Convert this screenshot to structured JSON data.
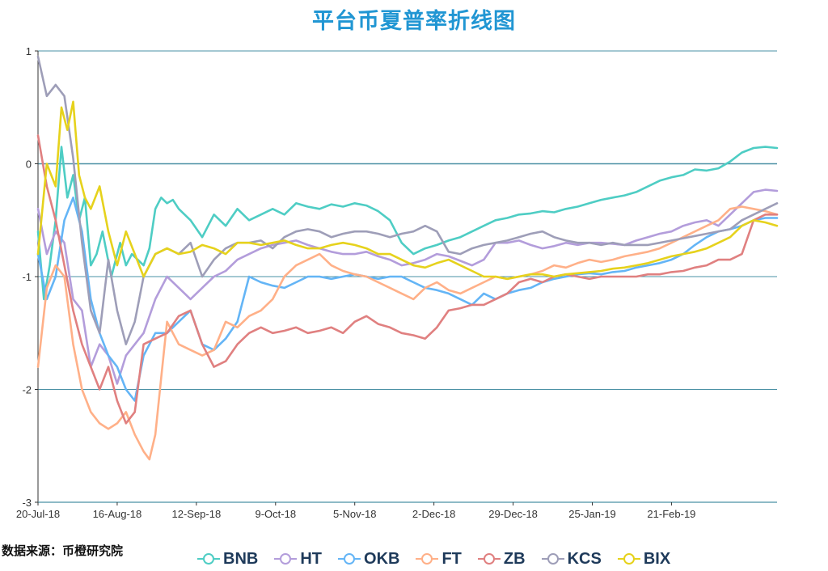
{
  "source_note": "数据来源：币橙研究院",
  "chart_data": {
    "type": "line",
    "title": "平台币夏普率折线图",
    "xlabel": "",
    "ylabel": "",
    "ylim": [
      -3,
      1
    ],
    "y_ticks": [
      "1",
      "0",
      "-1",
      "-2",
      "-3"
    ],
    "x_tick_labels": [
      "20-Jul-18",
      "16-Aug-18",
      "12-Sep-18",
      "9-Oct-18",
      "5-Nov-18",
      "2-Dec-18",
      "29-Dec-18",
      "25-Jan-19",
      "21-Feb-19"
    ],
    "x_range_days": [
      0,
      252
    ],
    "grid": "horizontal",
    "legend_position": "bottom",
    "series": [
      {
        "name": "BNB",
        "color": "#4ecdc4",
        "x": [
          0,
          2,
          4,
          6,
          8,
          10,
          12,
          14,
          16,
          18,
          20,
          22,
          25,
          28,
          30,
          32,
          34,
          36,
          38,
          40,
          42,
          44,
          46,
          48,
          52,
          56,
          60,
          64,
          68,
          72,
          76,
          80,
          84,
          88,
          92,
          96,
          100,
          104,
          108,
          112,
          116,
          120,
          124,
          128,
          132,
          136,
          140,
          144,
          148,
          152,
          156,
          160,
          164,
          168,
          172,
          176,
          180,
          184,
          188,
          192,
          196,
          200,
          204,
          208,
          212,
          216,
          220,
          224,
          228,
          232,
          236,
          240,
          244,
          248,
          252
        ],
        "y": [
          -0.6,
          -1.2,
          -0.9,
          -0.5,
          0.15,
          -0.3,
          -0.1,
          -0.5,
          -0.3,
          -0.9,
          -0.8,
          -0.6,
          -1.0,
          -0.7,
          -0.9,
          -0.8,
          -0.85,
          -0.9,
          -0.75,
          -0.4,
          -0.3,
          -0.35,
          -0.32,
          -0.4,
          -0.5,
          -0.65,
          -0.45,
          -0.55,
          -0.4,
          -0.5,
          -0.45,
          -0.4,
          -0.45,
          -0.35,
          -0.38,
          -0.4,
          -0.36,
          -0.38,
          -0.35,
          -0.37,
          -0.42,
          -0.5,
          -0.7,
          -0.8,
          -0.75,
          -0.72,
          -0.68,
          -0.65,
          -0.6,
          -0.55,
          -0.5,
          -0.48,
          -0.45,
          -0.44,
          -0.42,
          -0.43,
          -0.4,
          -0.38,
          -0.35,
          -0.32,
          -0.3,
          -0.28,
          -0.25,
          -0.2,
          -0.15,
          -0.12,
          -0.1,
          -0.05,
          -0.06,
          -0.04,
          0.02,
          0.1,
          0.14,
          0.15,
          0.14
        ]
      },
      {
        "name": "HT",
        "color": "#b39ddb",
        "x": [
          0,
          3,
          6,
          9,
          12,
          15,
          18,
          21,
          24,
          27,
          30,
          33,
          36,
          40,
          44,
          48,
          52,
          56,
          60,
          64,
          68,
          72,
          76,
          80,
          84,
          88,
          92,
          96,
          100,
          104,
          108,
          112,
          116,
          120,
          124,
          128,
          132,
          136,
          140,
          144,
          148,
          152,
          156,
          160,
          164,
          168,
          172,
          176,
          180,
          184,
          188,
          192,
          196,
          200,
          204,
          208,
          212,
          216,
          220,
          224,
          228,
          232,
          236,
          240,
          244,
          248,
          252
        ],
        "y": [
          -0.4,
          -0.8,
          -0.6,
          -0.7,
          -1.2,
          -1.3,
          -1.8,
          -1.6,
          -1.7,
          -1.95,
          -1.7,
          -1.6,
          -1.5,
          -1.2,
          -1.0,
          -1.1,
          -1.2,
          -1.1,
          -1.0,
          -0.95,
          -0.85,
          -0.8,
          -0.75,
          -0.72,
          -0.7,
          -0.68,
          -0.72,
          -0.75,
          -0.78,
          -0.8,
          -0.8,
          -0.78,
          -0.82,
          -0.85,
          -0.9,
          -0.88,
          -0.85,
          -0.8,
          -0.82,
          -0.86,
          -0.9,
          -0.85,
          -0.7,
          -0.7,
          -0.68,
          -0.72,
          -0.75,
          -0.73,
          -0.7,
          -0.72,
          -0.7,
          -0.7,
          -0.71,
          -0.72,
          -0.68,
          -0.65,
          -0.62,
          -0.6,
          -0.55,
          -0.52,
          -0.5,
          -0.55,
          -0.45,
          -0.35,
          -0.25,
          -0.23,
          -0.24
        ]
      },
      {
        "name": "OKB",
        "color": "#64b5f6",
        "x": [
          0,
          3,
          6,
          9,
          12,
          15,
          18,
          21,
          24,
          27,
          30,
          33,
          36,
          40,
          44,
          48,
          52,
          56,
          60,
          64,
          68,
          72,
          76,
          80,
          84,
          88,
          92,
          96,
          100,
          104,
          108,
          112,
          116,
          120,
          124,
          128,
          132,
          136,
          140,
          144,
          148,
          152,
          156,
          160,
          164,
          168,
          172,
          176,
          180,
          184,
          188,
          192,
          196,
          200,
          204,
          208,
          212,
          216,
          220,
          224,
          228,
          232,
          236,
          240,
          244,
          248,
          252
        ],
        "y": [
          -0.8,
          -1.2,
          -1.0,
          -0.5,
          -0.3,
          -0.6,
          -1.2,
          -1.5,
          -1.7,
          -1.8,
          -2.0,
          -2.1,
          -1.7,
          -1.5,
          -1.5,
          -1.4,
          -1.3,
          -1.6,
          -1.65,
          -1.55,
          -1.4,
          -1.0,
          -1.05,
          -1.08,
          -1.1,
          -1.05,
          -1.0,
          -1.0,
          -1.02,
          -1.0,
          -0.98,
          -1.0,
          -1.02,
          -1.0,
          -1.0,
          -1.05,
          -1.1,
          -1.12,
          -1.15,
          -1.2,
          -1.25,
          -1.15,
          -1.2,
          -1.15,
          -1.12,
          -1.1,
          -1.05,
          -1.02,
          -1.0,
          -0.98,
          -0.97,
          -0.98,
          -0.96,
          -0.95,
          -0.92,
          -0.9,
          -0.88,
          -0.85,
          -0.8,
          -0.72,
          -0.65,
          -0.6,
          -0.58,
          -0.55,
          -0.5,
          -0.48,
          -0.48
        ]
      },
      {
        "name": "FT",
        "color": "#ffb088",
        "x": [
          0,
          3,
          6,
          9,
          12,
          15,
          18,
          21,
          24,
          27,
          30,
          33,
          36,
          38,
          40,
          42,
          44,
          46,
          48,
          52,
          56,
          60,
          64,
          68,
          72,
          76,
          80,
          84,
          88,
          92,
          96,
          100,
          104,
          108,
          112,
          116,
          120,
          124,
          128,
          132,
          136,
          140,
          144,
          148,
          152,
          156,
          160,
          164,
          168,
          172,
          176,
          180,
          184,
          188,
          192,
          196,
          200,
          204,
          208,
          212,
          216,
          220,
          224,
          228,
          232,
          236,
          240,
          244,
          248,
          252
        ],
        "y": [
          -1.8,
          -1.1,
          -0.9,
          -1.0,
          -1.6,
          -2.0,
          -2.2,
          -2.3,
          -2.35,
          -2.3,
          -2.2,
          -2.4,
          -2.55,
          -2.62,
          -2.4,
          -1.9,
          -1.4,
          -1.5,
          -1.6,
          -1.65,
          -1.7,
          -1.65,
          -1.4,
          -1.45,
          -1.35,
          -1.3,
          -1.2,
          -1.0,
          -0.9,
          -0.85,
          -0.8,
          -0.9,
          -0.95,
          -0.98,
          -1.0,
          -1.05,
          -1.1,
          -1.15,
          -1.2,
          -1.1,
          -1.05,
          -1.12,
          -1.15,
          -1.1,
          -1.05,
          -1.0,
          -1.02,
          -1.0,
          -0.98,
          -0.95,
          -0.9,
          -0.92,
          -0.88,
          -0.85,
          -0.87,
          -0.85,
          -0.82,
          -0.8,
          -0.78,
          -0.75,
          -0.7,
          -0.65,
          -0.6,
          -0.55,
          -0.5,
          -0.4,
          -0.38,
          -0.4,
          -0.42,
          -0.45
        ]
      },
      {
        "name": "ZB",
        "color": "#e08080",
        "x": [
          0,
          3,
          6,
          9,
          12,
          15,
          18,
          21,
          24,
          27,
          30,
          33,
          36,
          40,
          44,
          48,
          52,
          56,
          60,
          64,
          68,
          72,
          76,
          80,
          84,
          88,
          92,
          96,
          100,
          104,
          108,
          112,
          116,
          120,
          124,
          128,
          132,
          136,
          140,
          144,
          148,
          152,
          156,
          160,
          164,
          168,
          172,
          176,
          180,
          184,
          188,
          192,
          196,
          200,
          204,
          208,
          212,
          216,
          220,
          224,
          228,
          232,
          236,
          240,
          244,
          248,
          252
        ],
        "y": [
          0.25,
          -0.2,
          -0.5,
          -0.9,
          -1.3,
          -1.6,
          -1.8,
          -2.0,
          -1.8,
          -2.1,
          -2.3,
          -2.2,
          -1.6,
          -1.55,
          -1.5,
          -1.35,
          -1.3,
          -1.6,
          -1.8,
          -1.75,
          -1.6,
          -1.5,
          -1.45,
          -1.5,
          -1.48,
          -1.45,
          -1.5,
          -1.48,
          -1.45,
          -1.5,
          -1.4,
          -1.35,
          -1.42,
          -1.45,
          -1.5,
          -1.52,
          -1.55,
          -1.45,
          -1.3,
          -1.28,
          -1.25,
          -1.25,
          -1.2,
          -1.15,
          -1.05,
          -1.02,
          -1.05,
          -1.0,
          -0.98,
          -1.0,
          -1.02,
          -1.0,
          -1.0,
          -1.0,
          -1.0,
          -0.98,
          -0.98,
          -0.96,
          -0.95,
          -0.92,
          -0.9,
          -0.85,
          -0.85,
          -0.8,
          -0.5,
          -0.45,
          -0.45
        ]
      },
      {
        "name": "KCS",
        "color": "#9e9eb8",
        "x": [
          0,
          3,
          6,
          9,
          12,
          15,
          18,
          21,
          24,
          27,
          30,
          33,
          36,
          40,
          44,
          48,
          52,
          56,
          60,
          64,
          68,
          72,
          76,
          80,
          84,
          88,
          92,
          96,
          100,
          104,
          108,
          112,
          116,
          120,
          124,
          128,
          132,
          136,
          140,
          144,
          148,
          152,
          156,
          160,
          164,
          168,
          172,
          176,
          180,
          184,
          188,
          192,
          196,
          200,
          204,
          208,
          212,
          216,
          220,
          224,
          228,
          232,
          236,
          240,
          244,
          248,
          252
        ],
        "y": [
          0.95,
          0.6,
          0.7,
          0.6,
          0.05,
          -0.7,
          -1.3,
          -1.5,
          -0.85,
          -1.3,
          -1.6,
          -1.4,
          -1.0,
          -0.8,
          -0.75,
          -0.8,
          -0.7,
          -1.0,
          -0.85,
          -0.75,
          -0.7,
          -0.7,
          -0.68,
          -0.75,
          -0.65,
          -0.6,
          -0.58,
          -0.6,
          -0.65,
          -0.62,
          -0.6,
          -0.6,
          -0.62,
          -0.65,
          -0.62,
          -0.6,
          -0.55,
          -0.6,
          -0.78,
          -0.8,
          -0.75,
          -0.72,
          -0.7,
          -0.68,
          -0.65,
          -0.62,
          -0.6,
          -0.65,
          -0.68,
          -0.7,
          -0.7,
          -0.72,
          -0.7,
          -0.72,
          -0.72,
          -0.72,
          -0.7,
          -0.68,
          -0.66,
          -0.64,
          -0.62,
          -0.6,
          -0.58,
          -0.5,
          -0.45,
          -0.4,
          -0.35
        ]
      },
      {
        "name": "BIX",
        "color": "#e6d21c",
        "x": [
          0,
          3,
          6,
          8,
          10,
          12,
          14,
          16,
          18,
          21,
          24,
          27,
          30,
          33,
          36,
          40,
          44,
          48,
          52,
          56,
          60,
          64,
          68,
          72,
          76,
          80,
          84,
          88,
          92,
          96,
          100,
          104,
          108,
          112,
          116,
          120,
          124,
          128,
          132,
          136,
          140,
          144,
          148,
          152,
          156,
          160,
          164,
          168,
          172,
          176,
          180,
          184,
          188,
          192,
          196,
          200,
          204,
          208,
          212,
          216,
          220,
          224,
          228,
          232,
          236,
          240,
          244,
          248,
          252
        ],
        "y": [
          -0.8,
          0.0,
          -0.2,
          0.5,
          0.3,
          0.55,
          -0.1,
          -0.3,
          -0.4,
          -0.2,
          -0.6,
          -0.9,
          -0.6,
          -0.8,
          -1.0,
          -0.8,
          -0.75,
          -0.8,
          -0.78,
          -0.72,
          -0.75,
          -0.8,
          -0.7,
          -0.7,
          -0.72,
          -0.7,
          -0.68,
          -0.72,
          -0.75,
          -0.75,
          -0.72,
          -0.7,
          -0.72,
          -0.75,
          -0.8,
          -0.8,
          -0.85,
          -0.9,
          -0.92,
          -0.88,
          -0.85,
          -0.9,
          -0.95,
          -1.0,
          -1.0,
          -1.02,
          -1.0,
          -0.98,
          -0.98,
          -1.0,
          -0.98,
          -0.97,
          -0.96,
          -0.95,
          -0.93,
          -0.92,
          -0.9,
          -0.88,
          -0.85,
          -0.82,
          -0.8,
          -0.78,
          -0.75,
          -0.7,
          -0.65,
          -0.55,
          -0.5,
          -0.52,
          -0.55
        ]
      }
    ]
  }
}
